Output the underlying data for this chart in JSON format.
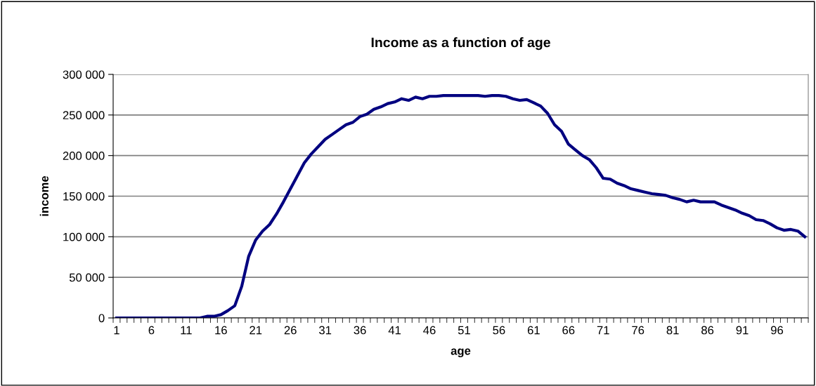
{
  "chart_data": {
    "type": "line",
    "title": "Income as a function of age",
    "xlabel": "age",
    "ylabel": "income",
    "categories": [
      "1",
      null,
      null,
      null,
      null,
      "6",
      null,
      null,
      null,
      null,
      "11",
      null,
      null,
      null,
      null,
      "16",
      null,
      null,
      null,
      null,
      "21",
      null,
      null,
      null,
      null,
      "26",
      null,
      null,
      null,
      null,
      "31",
      null,
      null,
      null,
      null,
      "36",
      null,
      null,
      null,
      null,
      "41",
      null,
      null,
      null,
      null,
      "46",
      null,
      null,
      null,
      null,
      "51",
      null,
      null,
      null,
      null,
      "56",
      null,
      null,
      null,
      null,
      "61",
      null,
      null,
      null,
      null,
      "66",
      null,
      null,
      null,
      null,
      "71",
      null,
      null,
      null,
      null,
      "76",
      null,
      null,
      null,
      null,
      "81",
      null,
      null,
      null,
      null,
      "86",
      null,
      null,
      null,
      null,
      "91",
      null,
      null,
      null,
      null,
      "96",
      null,
      null,
      null,
      null
    ],
    "series": [
      {
        "color": "#000080",
        "values": [
          0,
          0,
          0,
          0,
          0,
          0,
          0,
          0,
          0,
          0,
          0,
          0,
          0,
          2000,
          2000,
          4000,
          9000,
          15000,
          39000,
          76000,
          96000,
          107000,
          115000,
          128000,
          143000,
          159000,
          175000,
          191000,
          202000,
          211000,
          220000,
          226000,
          232000,
          238000,
          241000,
          248000,
          251000,
          257000,
          260000,
          264000,
          266000,
          270000,
          268000,
          272000,
          270000,
          273000,
          273000,
          274000,
          274000,
          274000,
          274000,
          274000,
          274000,
          273000,
          274000,
          274000,
          273000,
          270000,
          268000,
          269000,
          265000,
          261000,
          252000,
          238000,
          230000,
          214000,
          207000,
          200000,
          195000,
          185000,
          172000,
          171000,
          166000,
          163000,
          159000,
          157000,
          155000,
          153000,
          152000,
          151000,
          148000,
          146000,
          143000,
          145000,
          143000,
          143000,
          143000,
          139000,
          136000,
          133000,
          129000,
          126000,
          121000,
          120000,
          116000,
          111000,
          108000,
          109000,
          107000,
          100000
        ]
      }
    ],
    "ylim": [
      0,
      300000
    ],
    "yticks": [
      {
        "value": 0,
        "label": "0"
      },
      {
        "value": 50000,
        "label": "50 000"
      },
      {
        "value": 100000,
        "label": "100 000"
      },
      {
        "value": 150000,
        "label": "150 000"
      },
      {
        "value": 200000,
        "label": "200 000"
      },
      {
        "value": 250000,
        "label": "250 000"
      },
      {
        "value": 300000,
        "label": "300 000"
      }
    ],
    "grid": "y",
    "legend": false,
    "marker": "none",
    "line_style": "solid"
  }
}
